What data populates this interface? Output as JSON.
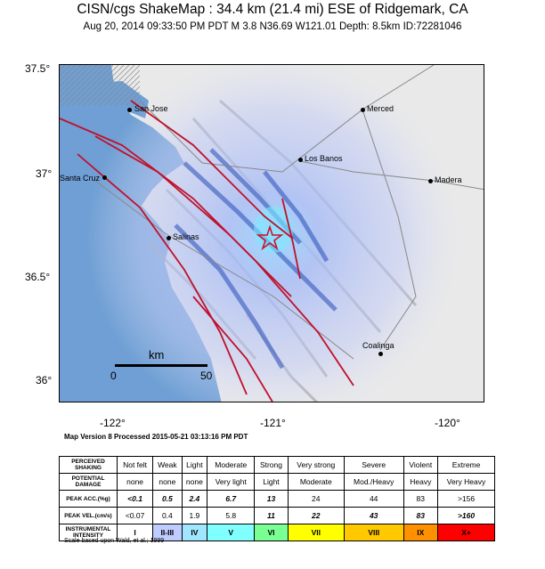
{
  "title": "CISN/cgs ShakeMap : 34.4 km (21.4 mi) ESE of Ridgemark, CA",
  "subtitle": "Aug 20, 2014 09:33:50 PM PDT   M 3.8   N36.69 W121.01   Depth: 8.5km   ID:72281046",
  "y_ticks": [
    "37.5°",
    "37°",
    "36.5°",
    "36°"
  ],
  "x_ticks": [
    "-122°",
    "-121°",
    "-120°"
  ],
  "cities": [
    "San Jose",
    "Merced",
    "Los Banos",
    "Santa Cruz",
    "Madera",
    "Salinas",
    "Coalinga"
  ],
  "scale_bar": {
    "unit": "km",
    "start": "0",
    "end": "50"
  },
  "version": "Map Version 8 Processed 2015-05-21 03:13:16 PM PDT",
  "legend": {
    "shaking_label": "PERCEIVED SHAKING",
    "damage_label": "POTENTIAL DAMAGE",
    "acc_label": "PEAK ACC.(%g)",
    "vel_label": "PEAK VEL.(cm/s)",
    "int_label": "INSTRUMENTAL INTENSITY",
    "shaking": [
      "Not felt",
      "Weak",
      "Light",
      "Moderate",
      "Strong",
      "Very strong",
      "Severe",
      "Violent",
      "Extreme"
    ],
    "damage": [
      "none",
      "none",
      "none",
      "Very light",
      "Light",
      "Moderate",
      "Mod./Heavy",
      "Heavy",
      "Very Heavy"
    ],
    "acc": [
      "<0.1",
      "0.5",
      "2.4",
      "6.7",
      "13",
      "24",
      "44",
      "83",
      ">156"
    ],
    "vel": [
      "<0.07",
      "0.4",
      "1.9",
      "5.8",
      "11",
      "22",
      "43",
      "83",
      ">160"
    ],
    "intensity": [
      "I",
      "II-III",
      "IV",
      "V",
      "VI",
      "VII",
      "VIII",
      "IX",
      "X+"
    ],
    "colors": [
      "#ffffff",
      "#bfccff",
      "#a0e6ff",
      "#80ffff",
      "#7aff93",
      "#ffff00",
      "#ffc800",
      "#ff9100",
      "#ff0000"
    ]
  },
  "scale_note": "Scale based upon Wald, et al.; 1999"
}
